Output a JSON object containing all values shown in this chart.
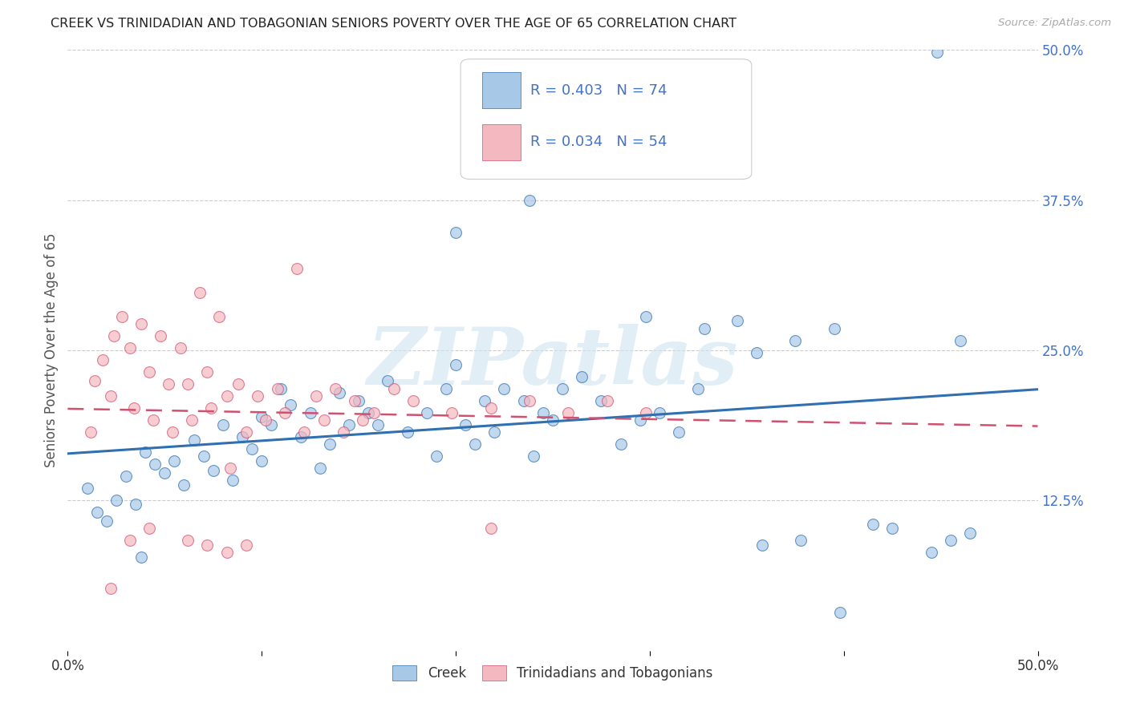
{
  "title": "CREEK VS TRINIDADIAN AND TOBAGONIAN SENIORS POVERTY OVER THE AGE OF 65 CORRELATION CHART",
  "source": "Source: ZipAtlas.com",
  "ylabel": "Seniors Poverty Over the Age of 65",
  "xlim": [
    0.0,
    0.5
  ],
  "ylim": [
    0.0,
    0.5
  ],
  "ytick_positions": [
    0.125,
    0.25,
    0.375,
    0.5
  ],
  "ytick_labels": [
    "12.5%",
    "25.0%",
    "37.5%",
    "50.0%"
  ],
  "legend_label1": "Creek",
  "legend_label2": "Trinidadians and Tobagonians",
  "R1": 0.403,
  "N1": 74,
  "R2": 0.034,
  "N2": 54,
  "blue_color": "#a8c8e8",
  "pink_color": "#f4b8c0",
  "blue_line_color": "#3070b0",
  "pink_line_color": "#d05070",
  "axis_color": "#4472c4",
  "watermark_color": "#d0e4f0",
  "watermark_text": "ZIPatlas",
  "blue_scatter": [
    [
      0.015,
      0.115
    ],
    [
      0.01,
      0.135
    ],
    [
      0.025,
      0.125
    ],
    [
      0.02,
      0.108
    ],
    [
      0.035,
      0.122
    ],
    [
      0.03,
      0.145
    ],
    [
      0.045,
      0.155
    ],
    [
      0.04,
      0.165
    ],
    [
      0.055,
      0.158
    ],
    [
      0.05,
      0.148
    ],
    [
      0.06,
      0.138
    ],
    [
      0.065,
      0.175
    ],
    [
      0.075,
      0.15
    ],
    [
      0.07,
      0.162
    ],
    [
      0.085,
      0.142
    ],
    [
      0.08,
      0.188
    ],
    [
      0.095,
      0.168
    ],
    [
      0.09,
      0.178
    ],
    [
      0.1,
      0.195
    ],
    [
      0.105,
      0.188
    ],
    [
      0.1,
      0.158
    ],
    [
      0.11,
      0.218
    ],
    [
      0.115,
      0.205
    ],
    [
      0.12,
      0.178
    ],
    [
      0.125,
      0.198
    ],
    [
      0.135,
      0.172
    ],
    [
      0.13,
      0.152
    ],
    [
      0.145,
      0.188
    ],
    [
      0.14,
      0.215
    ],
    [
      0.155,
      0.198
    ],
    [
      0.15,
      0.208
    ],
    [
      0.165,
      0.225
    ],
    [
      0.16,
      0.188
    ],
    [
      0.175,
      0.182
    ],
    [
      0.185,
      0.198
    ],
    [
      0.195,
      0.218
    ],
    [
      0.19,
      0.162
    ],
    [
      0.205,
      0.188
    ],
    [
      0.2,
      0.238
    ],
    [
      0.215,
      0.208
    ],
    [
      0.21,
      0.172
    ],
    [
      0.225,
      0.218
    ],
    [
      0.22,
      0.182
    ],
    [
      0.235,
      0.208
    ],
    [
      0.245,
      0.198
    ],
    [
      0.24,
      0.162
    ],
    [
      0.255,
      0.218
    ],
    [
      0.25,
      0.192
    ],
    [
      0.265,
      0.228
    ],
    [
      0.275,
      0.208
    ],
    [
      0.295,
      0.192
    ],
    [
      0.285,
      0.172
    ],
    [
      0.305,
      0.198
    ],
    [
      0.325,
      0.218
    ],
    [
      0.315,
      0.182
    ],
    [
      0.345,
      0.275
    ],
    [
      0.355,
      0.248
    ],
    [
      0.375,
      0.258
    ],
    [
      0.395,
      0.268
    ],
    [
      0.415,
      0.105
    ],
    [
      0.425,
      0.102
    ],
    [
      0.445,
      0.082
    ],
    [
      0.455,
      0.092
    ],
    [
      0.465,
      0.098
    ],
    [
      0.46,
      0.258
    ],
    [
      0.2,
      0.348
    ],
    [
      0.238,
      0.375
    ],
    [
      0.298,
      0.278
    ],
    [
      0.328,
      0.268
    ],
    [
      0.398,
      0.032
    ],
    [
      0.378,
      0.092
    ],
    [
      0.358,
      0.088
    ],
    [
      0.448,
      0.498
    ],
    [
      0.038,
      0.078
    ]
  ],
  "pink_scatter": [
    [
      0.012,
      0.182
    ],
    [
      0.014,
      0.225
    ],
    [
      0.018,
      0.242
    ],
    [
      0.022,
      0.212
    ],
    [
      0.024,
      0.262
    ],
    [
      0.028,
      0.278
    ],
    [
      0.032,
      0.252
    ],
    [
      0.034,
      0.202
    ],
    [
      0.038,
      0.272
    ],
    [
      0.042,
      0.232
    ],
    [
      0.044,
      0.192
    ],
    [
      0.048,
      0.262
    ],
    [
      0.052,
      0.222
    ],
    [
      0.054,
      0.182
    ],
    [
      0.058,
      0.252
    ],
    [
      0.062,
      0.222
    ],
    [
      0.064,
      0.192
    ],
    [
      0.068,
      0.298
    ],
    [
      0.072,
      0.232
    ],
    [
      0.074,
      0.202
    ],
    [
      0.078,
      0.278
    ],
    [
      0.082,
      0.212
    ],
    [
      0.084,
      0.152
    ],
    [
      0.088,
      0.222
    ],
    [
      0.092,
      0.182
    ],
    [
      0.098,
      0.212
    ],
    [
      0.102,
      0.192
    ],
    [
      0.108,
      0.218
    ],
    [
      0.112,
      0.198
    ],
    [
      0.118,
      0.318
    ],
    [
      0.122,
      0.182
    ],
    [
      0.128,
      0.212
    ],
    [
      0.132,
      0.192
    ],
    [
      0.138,
      0.218
    ],
    [
      0.142,
      0.182
    ],
    [
      0.148,
      0.208
    ],
    [
      0.152,
      0.192
    ],
    [
      0.158,
      0.198
    ],
    [
      0.168,
      0.218
    ],
    [
      0.178,
      0.208
    ],
    [
      0.198,
      0.198
    ],
    [
      0.218,
      0.202
    ],
    [
      0.238,
      0.208
    ],
    [
      0.258,
      0.198
    ],
    [
      0.278,
      0.208
    ],
    [
      0.298,
      0.198
    ],
    [
      0.218,
      0.102
    ],
    [
      0.022,
      0.052
    ],
    [
      0.032,
      0.092
    ],
    [
      0.042,
      0.102
    ],
    [
      0.062,
      0.092
    ],
    [
      0.072,
      0.088
    ],
    [
      0.082,
      0.082
    ],
    [
      0.092,
      0.088
    ]
  ]
}
